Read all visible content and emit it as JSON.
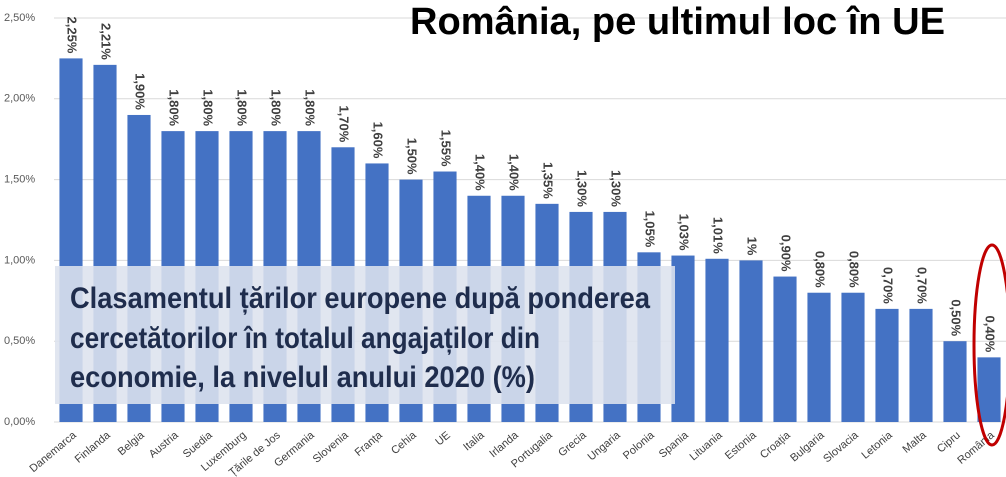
{
  "chart_data": {
    "type": "bar",
    "title": "România, pe ultimul loc în UE",
    "annotation": [
      "Clasamentul țărilor europene după ponderea",
      "cercetătorilor în totalul angajaților din",
      "economie, la nivelul anului 2020 (%)"
    ],
    "categories": [
      "Danemarca",
      "Finlanda",
      "Belgia",
      "Austria",
      "Suedia",
      "Luxemburg",
      "Țările de Jos",
      "Germania",
      "Slovenia",
      "Franța",
      "Cehia",
      "UE",
      "Italia",
      "Irlanda",
      "Portugalia",
      "Grecia",
      "Ungaria",
      "Polonia",
      "Spania",
      "Lituania",
      "Estonia",
      "Croația",
      "Bulgaria",
      "Slovacia",
      "Letonia",
      "Malta",
      "Cipru",
      "România"
    ],
    "values": [
      2.25,
      2.21,
      1.9,
      1.8,
      1.8,
      1.8,
      1.8,
      1.8,
      1.7,
      1.6,
      1.5,
      1.55,
      1.4,
      1.4,
      1.35,
      1.3,
      1.3,
      1.05,
      1.03,
      1.01,
      1,
      0.9,
      0.8,
      0.8,
      0.7,
      0.7,
      0.5,
      0.4
    ],
    "value_labels": [
      "2,25%",
      "2,21%",
      "1,90%",
      "1,80%",
      "1,80%",
      "1,80%",
      "1,80%",
      "1,80%",
      "1,70%",
      "1,60%",
      "1,50%",
      "1,55%",
      "1,40%",
      "1,40%",
      "1,35%",
      "1,30%",
      "1,30%",
      "1,05%",
      "1,03%",
      "1,01%",
      "1%",
      "0,90%",
      "0,80%",
      "0,80%",
      "0,70%",
      "0,70%",
      "0,50%",
      "0,40%"
    ],
    "color": "#4472c4",
    "ylim": [
      0,
      2.5
    ],
    "yticks": [
      {
        "value": 0,
        "label": "0,00%"
      },
      {
        "value": 0.5,
        "label": "0,50%"
      },
      {
        "value": 1,
        "label": "1,00%"
      },
      {
        "value": 1.5,
        "label": "1,50%"
      },
      {
        "value": 2,
        "label": "2,00%"
      },
      {
        "value": 2.5,
        "label": "2,50%"
      }
    ],
    "grid": true
  }
}
